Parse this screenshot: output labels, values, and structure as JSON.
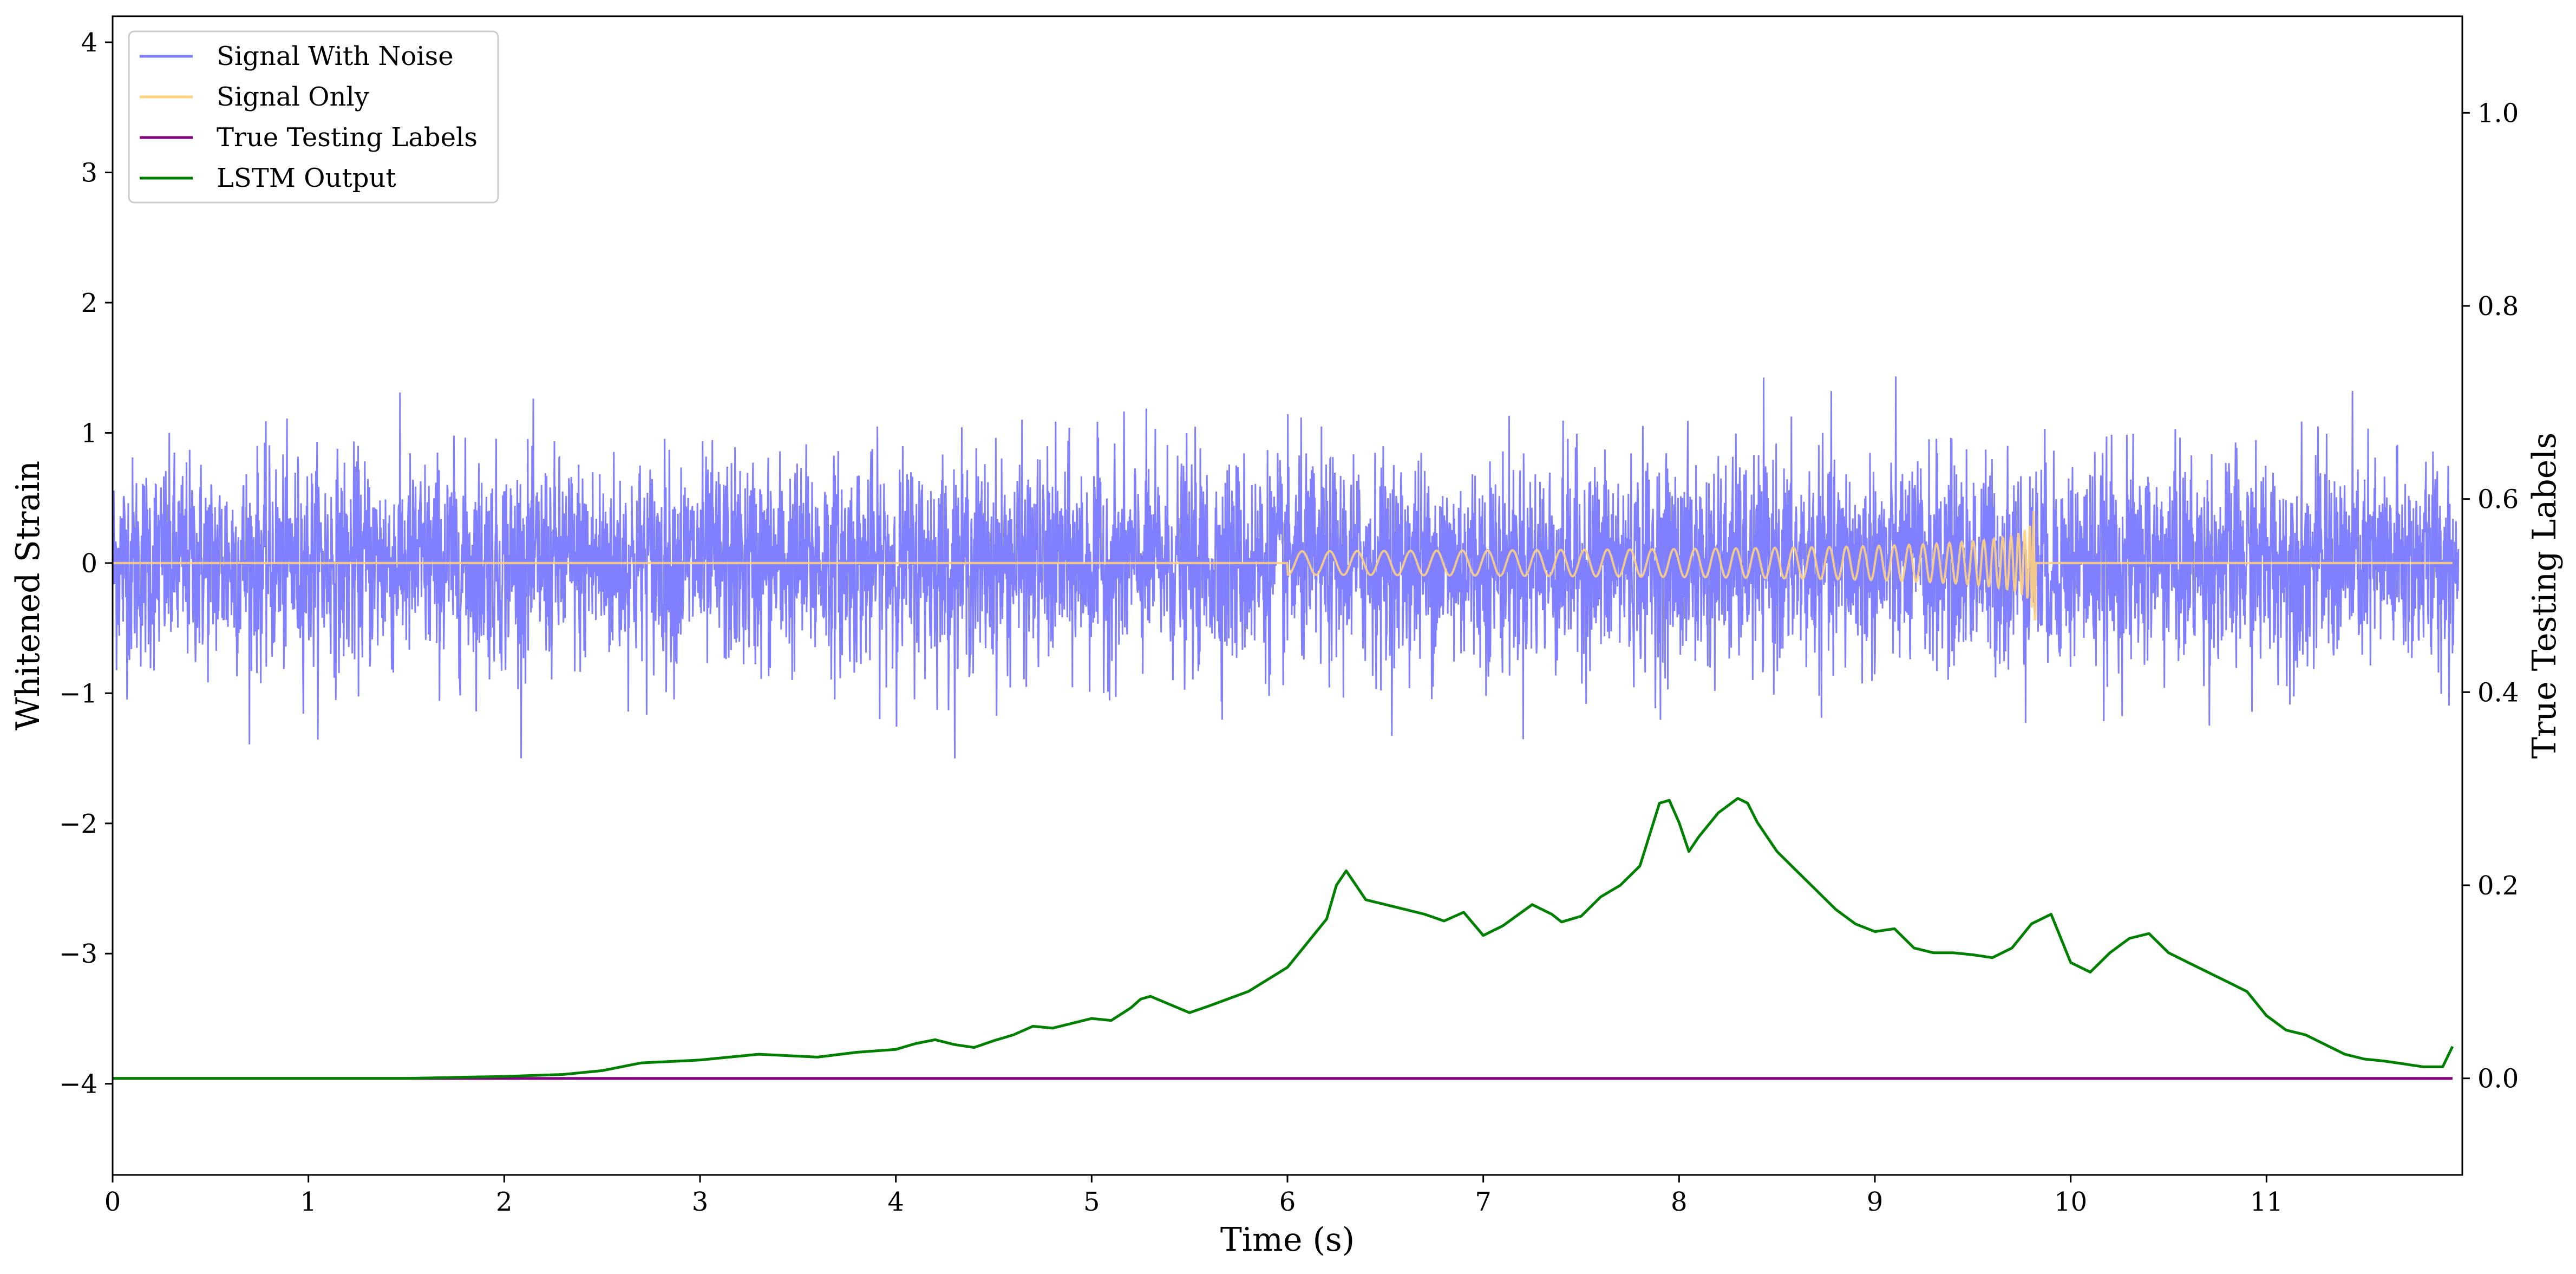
{
  "chart_data": {
    "type": "line",
    "xlabel": "Time (s)",
    "ylabel_left": "Whitened Strain",
    "ylabel_right": "True Testing Labels",
    "xlim": [
      0,
      12
    ],
    "ylim_left": [
      -4.7,
      4.2
    ],
    "ylim_right": [
      -0.1,
      1.1
    ],
    "x_ticks": [
      0,
      1,
      2,
      3,
      4,
      5,
      6,
      7,
      8,
      9,
      10,
      11
    ],
    "y_left_ticks": [
      -4,
      -3,
      -2,
      -1,
      0,
      1,
      2,
      3,
      4
    ],
    "y_right_ticks": [
      0.0,
      0.2,
      0.4,
      0.6,
      0.8,
      1.0
    ],
    "grid": false,
    "legend_position": "top-left",
    "legend": [
      {
        "label": "Signal With Noise",
        "color": "#7f7fff"
      },
      {
        "label": "Signal Only",
        "color": "#ffd27f"
      },
      {
        "label": "True Testing Labels",
        "color": "#800080"
      },
      {
        "label": "LSTM Output",
        "color": "#008000"
      }
    ],
    "series": [
      {
        "name": "Signal With Noise",
        "axis": "left",
        "color": "#7f7fff",
        "description_values": {
          "approx_std": 0.4,
          "typical_peak_range": [
            -1.5,
            1.6
          ]
        }
      },
      {
        "name": "Signal Only",
        "axis": "left",
        "color": "#ffd27f",
        "chirp": {
          "start_time": 6.0,
          "end_time": 9.82,
          "peak_amplitude": 0.5
        }
      },
      {
        "name": "True Testing Labels",
        "axis": "right",
        "color": "#800080",
        "x": [
          0,
          11.95
        ],
        "y": [
          0.0,
          0.0
        ]
      },
      {
        "name": "LSTM Output",
        "axis": "right",
        "color": "#008000",
        "x": [
          0,
          1.0,
          1.5,
          2.0,
          2.3,
          2.5,
          2.7,
          2.9,
          3.0,
          3.3,
          3.4,
          3.6,
          3.8,
          4.0,
          4.1,
          4.2,
          4.3,
          4.4,
          4.5,
          4.6,
          4.7,
          4.8,
          5.0,
          5.1,
          5.2,
          5.25,
          5.3,
          5.5,
          5.6,
          5.8,
          6.0,
          6.1,
          6.2,
          6.25,
          6.3,
          6.4,
          6.5,
          6.6,
          6.7,
          6.8,
          6.9,
          7.0,
          7.1,
          7.25,
          7.35,
          7.4,
          7.5,
          7.6,
          7.7,
          7.8,
          7.9,
          7.95,
          8.0,
          8.05,
          8.1,
          8.2,
          8.3,
          8.35,
          8.4,
          8.5,
          8.6,
          8.7,
          8.8,
          8.9,
          9.0,
          9.1,
          9.2,
          9.3,
          9.4,
          9.5,
          9.6,
          9.7,
          9.8,
          9.9,
          10.0,
          10.1,
          10.2,
          10.3,
          10.4,
          10.5,
          10.6,
          10.7,
          10.8,
          10.9,
          11.0,
          11.1,
          11.2,
          11.3,
          11.4,
          11.5,
          11.6,
          11.7,
          11.8,
          11.9,
          11.95
        ],
        "y": [
          0.0,
          0.0,
          0.0,
          0.002,
          0.004,
          0.008,
          0.016,
          0.018,
          0.019,
          0.025,
          0.024,
          0.022,
          0.027,
          0.03,
          0.036,
          0.04,
          0.035,
          0.032,
          0.039,
          0.045,
          0.054,
          0.052,
          0.062,
          0.06,
          0.073,
          0.082,
          0.085,
          0.068,
          0.075,
          0.09,
          0.115,
          0.14,
          0.165,
          0.2,
          0.215,
          0.185,
          0.18,
          0.175,
          0.17,
          0.163,
          0.172,
          0.148,
          0.158,
          0.18,
          0.17,
          0.162,
          0.168,
          0.188,
          0.2,
          0.22,
          0.285,
          0.288,
          0.265,
          0.235,
          0.25,
          0.275,
          0.29,
          0.285,
          0.265,
          0.235,
          0.215,
          0.195,
          0.175,
          0.16,
          0.152,
          0.155,
          0.135,
          0.13,
          0.13,
          0.128,
          0.125,
          0.135,
          0.16,
          0.17,
          0.12,
          0.11,
          0.13,
          0.145,
          0.15,
          0.13,
          0.12,
          0.11,
          0.1,
          0.09,
          0.065,
          0.05,
          0.045,
          0.035,
          0.025,
          0.02,
          0.018,
          0.015,
          0.012,
          0.012,
          0.033
        ]
      }
    ]
  }
}
